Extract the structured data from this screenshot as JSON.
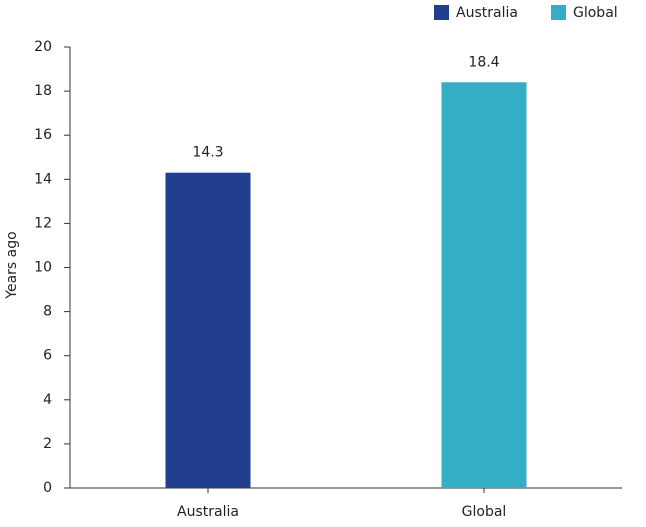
{
  "chart_data": {
    "type": "bar",
    "y_label": "Years ago",
    "categories": [
      "Australia",
      "Global"
    ],
    "series": [
      {
        "name": "Australia",
        "color": "#223f8f",
        "values": [
          14.3,
          null
        ]
      },
      {
        "name": "Global",
        "color": "#33aec5",
        "values": [
          null,
          18.4
        ]
      }
    ],
    "ylim": [
      0,
      20
    ],
    "yticks": [
      0,
      2,
      4,
      6,
      8,
      10,
      12,
      14,
      16,
      18,
      20
    ],
    "grid": false,
    "legend": "top-right"
  }
}
